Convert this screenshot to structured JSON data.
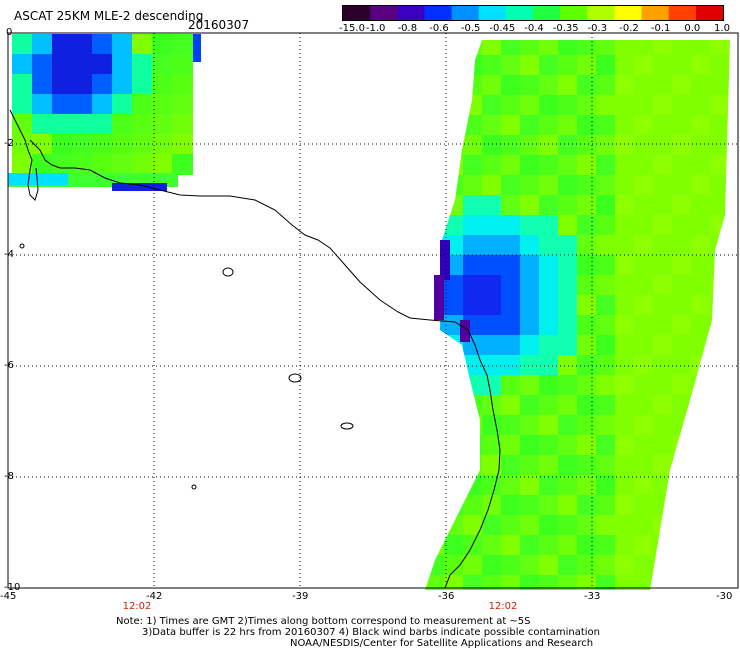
{
  "header": {
    "title": "ASCAT 25KM MLE-2 descending",
    "date": "20160307"
  },
  "colorbar": {
    "labels": [
      "-15.0",
      "-1.0",
      "-0.8",
      "-0.6",
      "-0.5",
      "-0.45",
      "-0.4",
      "-0.35",
      "-0.3",
      "-0.2",
      "-0.1",
      "0.0",
      "1.0"
    ],
    "colors": [
      "#2a002a",
      "#5a0080",
      "#3a00c0",
      "#0030ff",
      "#0090ff",
      "#00e0ff",
      "#00ffb0",
      "#20ff40",
      "#60ff00",
      "#b0ff00",
      "#ffff00",
      "#ffa000",
      "#ff4000",
      "#e00000"
    ]
  },
  "axes": {
    "lat_labels": [
      "0",
      "-2",
      "-4",
      "-6",
      "-8",
      "-10"
    ],
    "lon_labels": [
      "-45",
      "-42",
      "-39",
      "-36",
      "-33",
      "-30"
    ],
    "time_labels": [
      "12:02",
      "12:02"
    ]
  },
  "notes": {
    "line1": "Note: 1) Times are GMT 2)Times along bottom correspond to measurement at ~5S",
    "line2": "3)Data buffer is 22 hrs from 20160307 4) Black wind barbs indicate possible contamination",
    "line3": "NOAA/NESDIS/Center for Satellite Applications and Research"
  }
}
